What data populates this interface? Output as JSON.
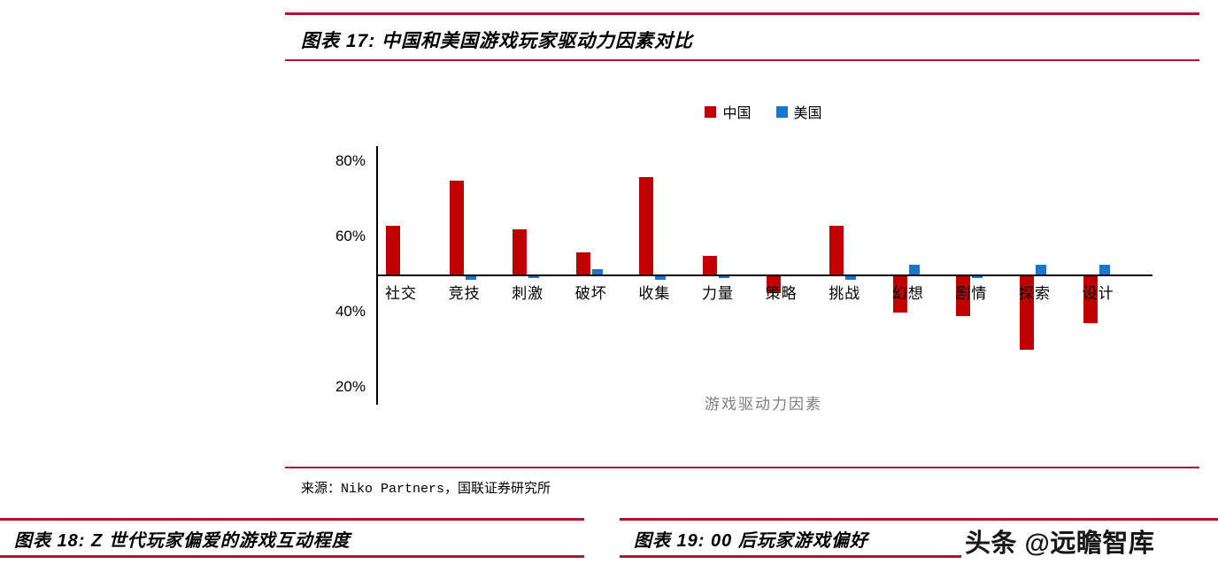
{
  "figure17": {
    "title": "图表 17:  中国和美国游戏玩家驱动力因素对比",
    "source": "来源：Niko Partners，国联证券研究所"
  },
  "chart_data": {
    "type": "bar",
    "title": "中国和美国游戏玩家驱动力因素对比",
    "xlabel": "游戏驱动力因素",
    "ylabel": "",
    "baseline": 50,
    "ylim": [
      15,
      84
    ],
    "ytick_values": [
      80,
      60,
      40,
      20
    ],
    "ytick_labels": [
      "80%",
      "60%",
      "40%",
      "20%"
    ],
    "legend_position": "top",
    "grid": false,
    "categories": [
      "社交",
      "竞技",
      "刺激",
      "破坏",
      "收集",
      "力量",
      "策略",
      "挑战",
      "幻想",
      "剧情",
      "探索",
      "设计"
    ],
    "series": [
      {
        "name": "中国",
        "color": "#C00000",
        "values": [
          63,
          75,
          62,
          56,
          76,
          55,
          45,
          63,
          40,
          39,
          30,
          37
        ]
      },
      {
        "name": "美国",
        "color": "#1876D2",
        "values": [
          50,
          48.5,
          49,
          51.5,
          48.5,
          49,
          50,
          48.5,
          52.5,
          49,
          52.5,
          52.5
        ]
      }
    ]
  },
  "figure18": {
    "title": "图表 18:  Z 世代玩家偏爱的游戏互动程度"
  },
  "figure19": {
    "title": "图表 19: 00 后玩家游戏偏好"
  },
  "watermark": {
    "text": "头条 @远瞻智库"
  },
  "colors": {
    "accent_red": "#A6192E",
    "bar_china": "#C00000",
    "bar_usa": "#1876D2",
    "axis": "#000000",
    "xlabel_gray": "#7f7f7f"
  }
}
